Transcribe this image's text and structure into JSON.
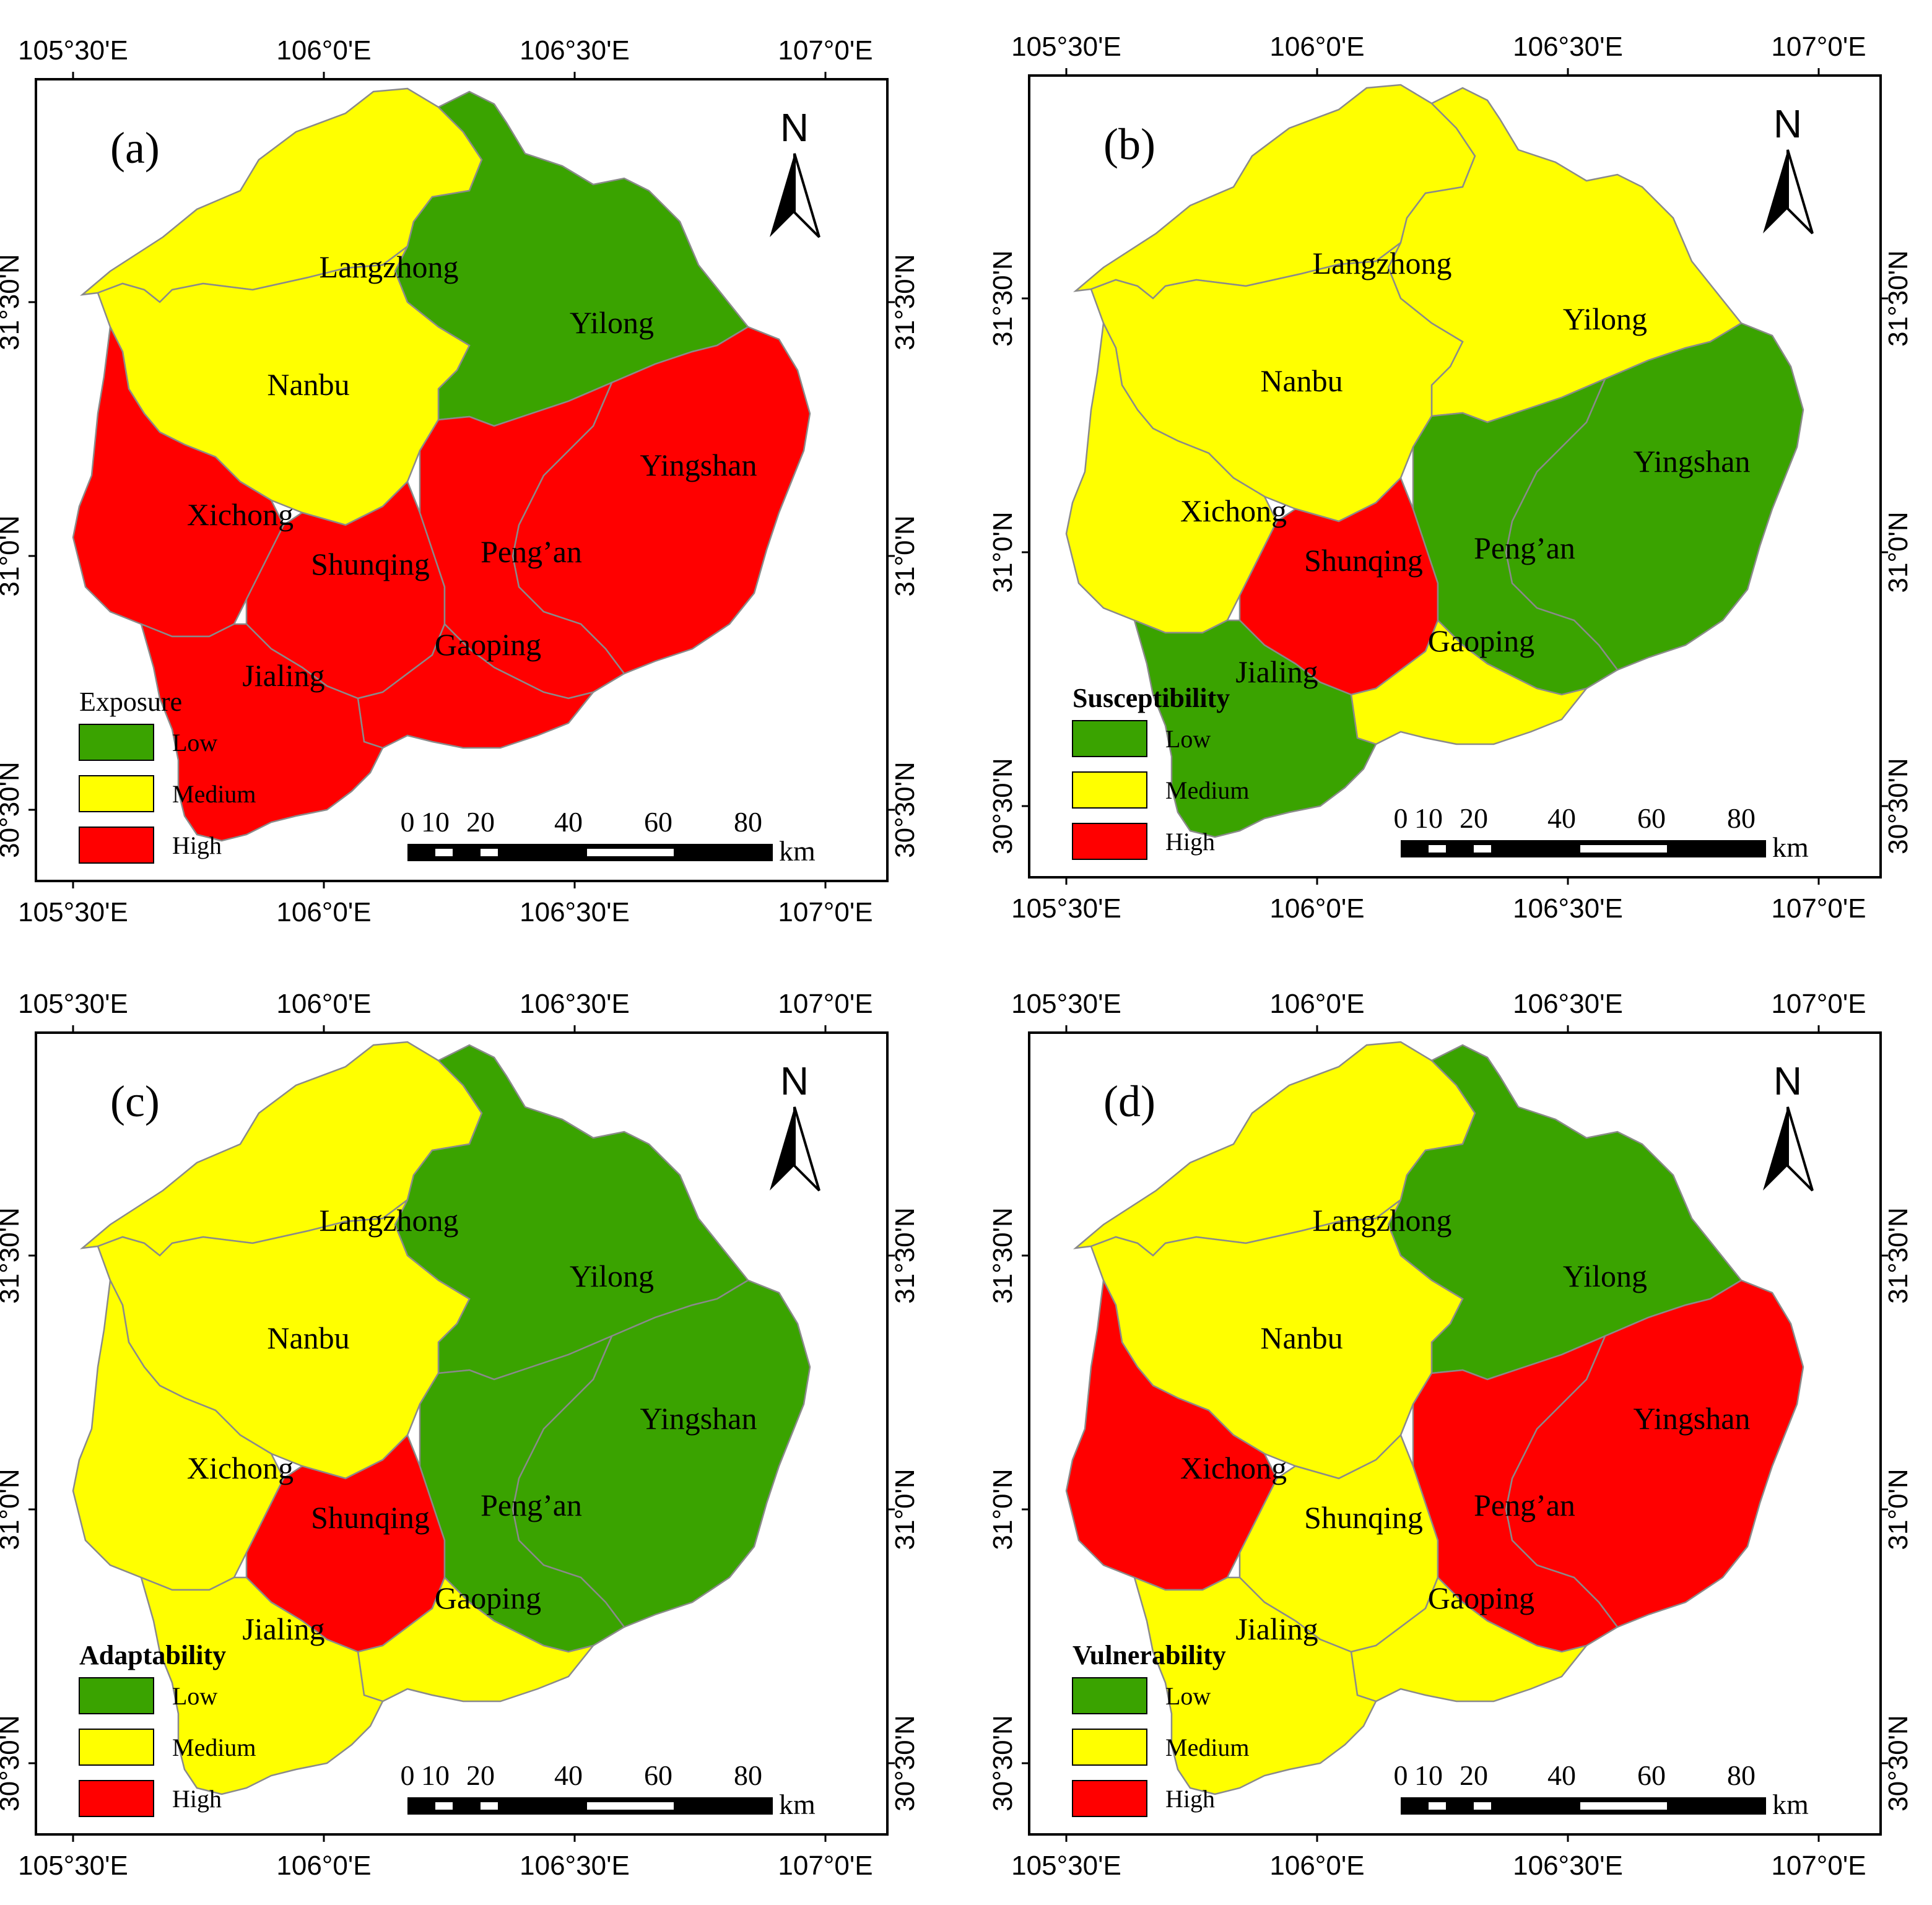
{
  "figure": {
    "lon_labels": [
      "105°30'E",
      "106°0'E",
      "106°30'E",
      "107°0'E"
    ],
    "lat_labels": [
      "31°30'N",
      "31°0'N",
      "30°30'N"
    ],
    "north_label": "N",
    "scale": {
      "ticks": [
        "0",
        "10",
        "20",
        "40",
        "60",
        "80"
      ],
      "unit": "km"
    },
    "legend_levels": [
      "Low",
      "Medium",
      "High"
    ],
    "colors": {
      "Low": "#3aa300",
      "Medium": "#ffff00",
      "High": "#ff0000",
      "boundary": "#8a8a8a"
    }
  },
  "districts": [
    "Langzhong",
    "Yilong",
    "Nanbu",
    "Yingshan",
    "Xichong",
    "Shunqing",
    "Peng'an",
    "Gaoping",
    "Jialing"
  ],
  "district_labels": {
    "Langzhong": "Langzhong",
    "Yilong": "Yilong",
    "Nanbu": "Nanbu",
    "Yingshan": "Yingshan",
    "Xichong": "Xichong",
    "Shunqing": "Shunqing",
    "Pengan": "Peng’an",
    "Gaoping": "Gaoping",
    "Jialing": "Jialing"
  },
  "panels": [
    {
      "id": "a",
      "label": "(a)",
      "legend_title": "Exposure",
      "legend_bold": false,
      "classes": {
        "Langzhong": "Medium",
        "Yilong": "Low",
        "Nanbu": "Medium",
        "Yingshan": "High",
        "Xichong": "High",
        "Shunqing": "High",
        "Peng'an": "High",
        "Gaoping": "High",
        "Jialing": "High"
      }
    },
    {
      "id": "b",
      "label": "(b)",
      "legend_title": "Susceptibility",
      "legend_bold": true,
      "classes": {
        "Langzhong": "Medium",
        "Yilong": "Medium",
        "Nanbu": "Medium",
        "Yingshan": "Low",
        "Xichong": "Medium",
        "Shunqing": "High",
        "Peng'an": "Low",
        "Gaoping": "Medium",
        "Jialing": "Low"
      }
    },
    {
      "id": "c",
      "label": "(c)",
      "legend_title": "Adaptability",
      "legend_bold": true,
      "classes": {
        "Langzhong": "Medium",
        "Yilong": "Low",
        "Nanbu": "Medium",
        "Yingshan": "Low",
        "Xichong": "Medium",
        "Shunqing": "High",
        "Peng'an": "Low",
        "Gaoping": "Medium",
        "Jialing": "Medium"
      }
    },
    {
      "id": "d",
      "label": "(d)",
      "legend_title": "Vulnerability",
      "legend_bold": true,
      "classes": {
        "Langzhong": "Medium",
        "Yilong": "Low",
        "Nanbu": "Medium",
        "Yingshan": "High",
        "Xichong": "High",
        "Shunqing": "Medium",
        "Peng'an": "High",
        "Gaoping": "Medium",
        "Jialing": "Medium"
      }
    }
  ]
}
